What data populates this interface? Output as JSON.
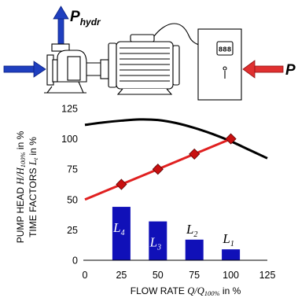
{
  "schematic": {
    "hydraulic_power": {
      "symbol": "P",
      "subscript": "hydr"
    },
    "electric_power": {
      "symbol": "P"
    },
    "colors": {
      "blue": "#1f3fbf",
      "red": "#e03030"
    },
    "icons": [
      "up-arrow-icon",
      "inlet-arrow-icon",
      "pump-icon",
      "motor-icon",
      "controller-cabinet-icon",
      "power-arrow-icon"
    ]
  },
  "chart_data": {
    "type": "bar",
    "x_axis": {
      "label_prefix": "FLOW RATE ",
      "label_var": "Q",
      "label_slash": "/",
      "label_var2": "Q",
      "label_sub": "100%",
      "label_suffix": " in %",
      "ticks": [
        0,
        25,
        50,
        75,
        100,
        125
      ],
      "range": [
        0,
        125
      ]
    },
    "y_axis": {
      "label_line1_prefix": "PUMP HEAD ",
      "label_line1_var": "H",
      "label_line1_slash": "/",
      "label_line1_var2": "H",
      "label_line1_sub": "100%",
      "label_line1_suffix": " in %",
      "label_line2_prefix": "TIME FACTORS ",
      "label_line2_var": "L",
      "label_line2_sub": "t",
      "label_line2_suffix": " in %",
      "ticks": [
        0,
        25,
        50,
        75,
        100,
        125
      ],
      "range": [
        0,
        125
      ]
    },
    "bars": [
      {
        "x": 25,
        "value": 44,
        "label": "L",
        "label_sub": "4"
      },
      {
        "x": 50,
        "value": 32,
        "label": "L",
        "label_sub": "3"
      },
      {
        "x": 75,
        "value": 17,
        "label": "L",
        "label_sub": "2"
      },
      {
        "x": 100,
        "value": 9,
        "label": "L",
        "label_sub": "1"
      }
    ],
    "pump_curve": {
      "x": [
        0,
        12.5,
        25,
        37.5,
        50,
        62.5,
        75,
        87.5,
        100,
        112.5,
        125
      ],
      "y": [
        111.5,
        113.5,
        115,
        116,
        115.5,
        113,
        109,
        104,
        98,
        91,
        84
      ]
    },
    "system_curve": {
      "x": [
        0,
        25,
        50,
        75,
        100
      ],
      "y": [
        50,
        62.5,
        75,
        87.5,
        100
      ],
      "markers": [
        {
          "x": 25,
          "y": 62.5
        },
        {
          "x": 50,
          "y": 75
        },
        {
          "x": 75,
          "y": 87.5
        },
        {
          "x": 100,
          "y": 100
        }
      ]
    },
    "colors": {
      "bar": "#1010b8",
      "pump_curve": "#000000",
      "system_curve": "#e02020",
      "marker": "#c81010"
    }
  }
}
